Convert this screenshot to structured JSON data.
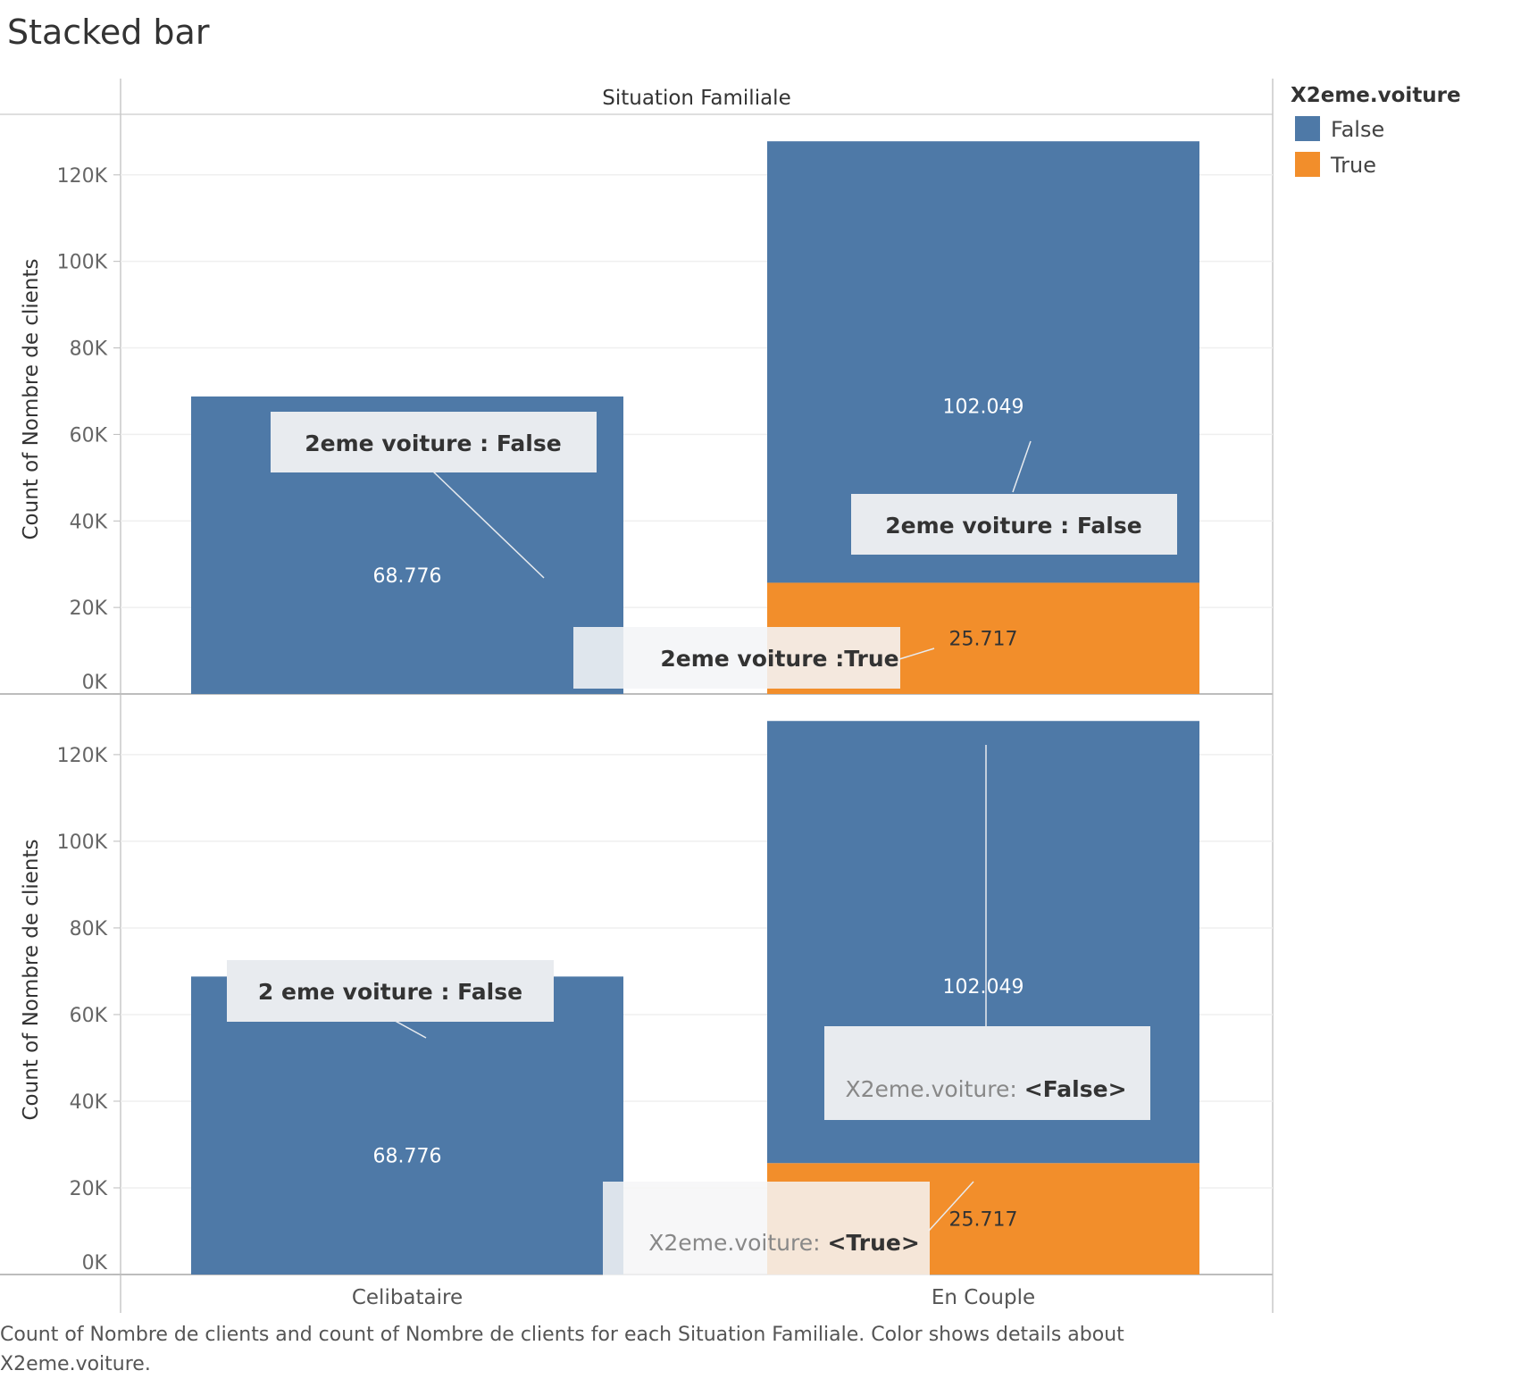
{
  "title": "Stacked bar",
  "caption": "Count of Nombre de clients and count of Nombre de clients for each Situation Familiale.  Color shows details about X2eme.voiture.",
  "colors": {
    "False": "#4e79a7",
    "True": "#f28e2b"
  },
  "legend": {
    "title": "X2eme.voiture",
    "items": [
      {
        "label": "False",
        "color": "#4e79a7"
      },
      {
        "label": "True",
        "color": "#f28e2b"
      }
    ]
  },
  "chart_data": {
    "type": "bar",
    "stacked": true,
    "column_header": "Situation Familiale",
    "ylabel": "Count of Nombre de clients",
    "ylim": [
      0,
      134000
    ],
    "yticks": [
      0,
      20000,
      40000,
      60000,
      80000,
      100000,
      120000
    ],
    "ytick_labels": [
      "0K",
      "20K",
      "40K",
      "60K",
      "80K",
      "100K",
      "120K"
    ],
    "categories": [
      "Celibataire",
      "En Couple"
    ],
    "series": [
      {
        "name": "False",
        "values": [
          68776,
          102049
        ],
        "labels": [
          "68.776",
          "102.049"
        ]
      },
      {
        "name": "True",
        "values": [
          0,
          25717
        ],
        "labels": [
          "",
          "25.717"
        ]
      }
    ],
    "panels": [
      {
        "annotations": [
          "2eme voiture : False",
          "2eme voiture : False",
          "2eme voiture :True"
        ]
      },
      {
        "annotations": [
          {
            "text": "2 eme voiture : False"
          },
          {
            "prefix": "X2eme.voiture: ",
            "value": "<False>"
          },
          {
            "prefix": "X2eme.voiture: ",
            "value": "<True>"
          }
        ]
      }
    ]
  }
}
